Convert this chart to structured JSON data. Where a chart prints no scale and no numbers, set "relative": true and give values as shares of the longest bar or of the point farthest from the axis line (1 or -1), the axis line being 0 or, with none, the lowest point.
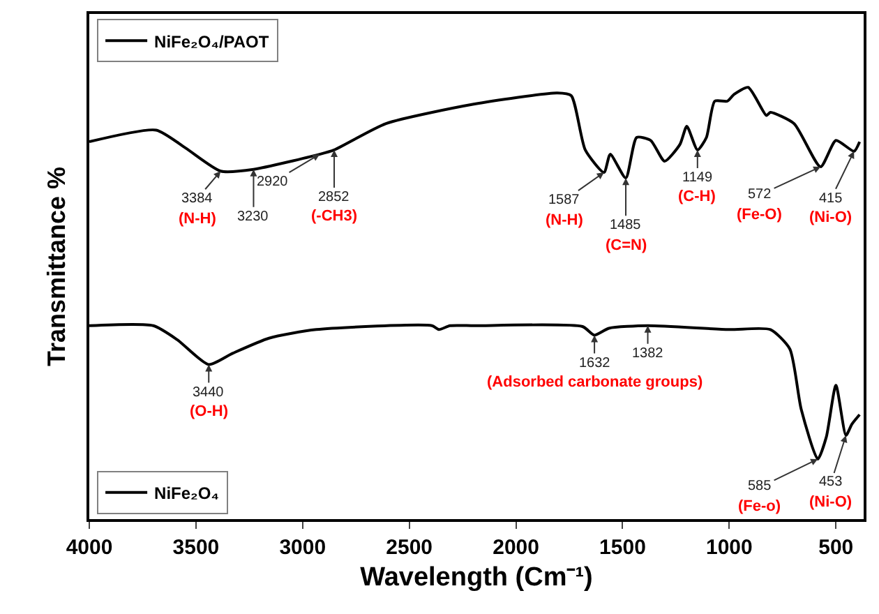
{
  "chart_data": {
    "type": "line",
    "relative": true,
    "xlabel": "Wavelength (Cm⁻¹)",
    "ylabel": "Transmittance %",
    "xlim": [
      4000,
      370
    ],
    "xticks": [
      4000,
      3500,
      3000,
      2500,
      2000,
      1500,
      1000,
      500
    ],
    "legend": "top left",
    "series": [
      {
        "name": "NiFe₂O₄/PAOT",
        "color": "#000000",
        "x": [
          4000,
          3687,
          3550,
          3384,
          3230,
          2920,
          2852,
          2609,
          2198,
          1806,
          1741,
          1675,
          1587,
          1558,
          1485,
          1434,
          1368,
          1303,
          1231,
          1199,
          1149,
          1107,
          1068,
          1009,
          977,
          911,
          826,
          807,
          696,
          572,
          500,
          415,
          389
        ],
        "values": [
          0.874,
          0.901,
          0.86,
          0.806,
          0.81,
          0.845,
          0.855,
          0.916,
          0.961,
          0.987,
          0.981,
          0.855,
          0.803,
          0.845,
          0.79,
          0.884,
          0.877,
          0.829,
          0.868,
          0.91,
          0.855,
          0.884,
          0.968,
          0.968,
          0.984,
          1.0,
          0.935,
          0.942,
          0.916,
          0.816,
          0.877,
          0.852,
          0.874
        ]
      },
      {
        "name": "NiFe₂O₄",
        "color": "#000000",
        "x": [
          4000,
          3700,
          3589,
          3440,
          3328,
          3158,
          2936,
          2394,
          2361,
          2309,
          2198,
          1688,
          1632,
          1564,
          1382,
          1003,
          807,
          716,
          663,
          585,
          545,
          500,
          453,
          425,
          389
        ],
        "values": [
          0.448,
          0.448,
          0.416,
          0.358,
          0.384,
          0.419,
          0.439,
          0.448,
          0.439,
          0.448,
          0.448,
          0.446,
          0.426,
          0.442,
          0.448,
          0.439,
          0.439,
          0.394,
          0.255,
          0.139,
          0.19,
          0.31,
          0.194,
          0.22,
          0.242
        ]
      }
    ],
    "annotations": [
      {
        "text": "3384",
        "x": 3384,
        "y": 0.806
      },
      "(N-H)",
      {
        "text": "3230",
        "x": 3230,
        "y": 0.81
      },
      {
        "text": "2920",
        "x": 2920,
        "y": 0.845
      },
      {
        "text": "2852",
        "x": 2852,
        "y": 0.855
      },
      "(-CH3)",
      {
        "text": "1587",
        "x": 1587,
        "y": 0.803
      },
      "(N-H)",
      {
        "text": "1485",
        "x": 1485,
        "y": 0.79
      },
      "(C=N)",
      {
        "text": "1149",
        "x": 1149,
        "y": 0.855
      },
      "(C-H)",
      {
        "text": "572",
        "x": 572,
        "y": 0.816
      },
      "(Fe-O)",
      {
        "text": "415",
        "x": 415,
        "y": 0.852
      },
      "(Ni-O)",
      {
        "text": "3440",
        "x": 3440,
        "y": 0.358
      },
      "(O-H)",
      {
        "text": "1632",
        "x": 1632,
        "y": 0.426
      },
      "(Adsorbed carbonate groups)",
      {
        "text": "1382",
        "x": 1382,
        "y": 0.448
      },
      {
        "text": "585",
        "x": 585,
        "y": 0.139
      },
      "(Fe-o)",
      {
        "text": "453",
        "x": 453,
        "y": 0.194
      },
      "(Ni-O)"
    ]
  }
}
